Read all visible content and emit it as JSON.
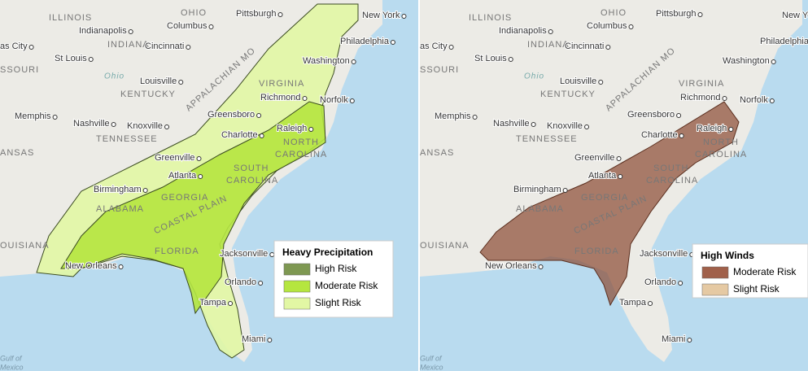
{
  "maps": [
    {
      "legend": {
        "title": "Heavy Precipitation",
        "items": [
          {
            "label": "High Risk",
            "color": "#7e9852"
          },
          {
            "label": "Moderate Risk",
            "color": "#b5e63f"
          },
          {
            "label": "Slight Risk",
            "color": "#e2f7a4"
          }
        ]
      },
      "labels": [
        "ILLINOIS",
        "OHIO",
        "Pittsburgh",
        "New York",
        "Indianapolis",
        "Columbus",
        "as City",
        "INDIANA",
        "Cincinnati",
        "Philadelphia",
        "St Louis",
        "Washington",
        "SSOURI",
        "Ohio",
        "Louisville",
        "VIRGINIA",
        "KENTUCKY",
        "Richmond",
        "Norfolk",
        "Greensboro",
        "Memphis",
        "Nashville",
        "Knoxville",
        "Charlotte",
        "Raleigh",
        "NORTH",
        "CAROLINA",
        "TENNESSEE",
        "ANSAS",
        "Greenville",
        "SOUTH",
        "CAROLINA",
        "Atlanta",
        "Birmingham",
        "GEORGIA",
        "ALABAMA",
        "OUISIANA",
        "Jacksonville",
        "FLORIDA",
        "New Orleans",
        "Orlando",
        "Tampa",
        "Miami",
        "Gulf of",
        "Mexico",
        "APPALACHIAN MO",
        "COASTAL PLAIN"
      ]
    },
    {
      "legend": {
        "title": "High Winds",
        "items": [
          {
            "label": "Moderate Risk",
            "color": "#a0604a"
          },
          {
            "label": "Slight Risk",
            "color": "#e5c9a3"
          }
        ]
      },
      "labels": [
        "ILLINOIS",
        "OHIO",
        "Pittsburgh",
        "New York",
        "Indianapolis",
        "Columbus",
        "as City",
        "INDIANA",
        "Cincinnati",
        "Philadelphia",
        "St Louis",
        "Washington",
        "SSOURI",
        "Ohio",
        "Louisville",
        "VIRGINIA",
        "KENTUCKY",
        "Richmond",
        "Norfolk",
        "Greensboro",
        "Memphis",
        "Nashville",
        "Knoxville",
        "Charlotte",
        "Raleigh",
        "NORTH",
        "CAROLINA",
        "TENNESSEE",
        "ANSAS",
        "Greenville",
        "SOUTH",
        "CAROLINA",
        "Atlanta",
        "Birmingham",
        "GEORGIA",
        "ALABAMA",
        "OUISIANA",
        "Jacksonville",
        "FLORIDA",
        "New Orleans",
        "Orlando",
        "Tampa",
        "Miami",
        "Gulf of",
        "Mexico",
        "APPALACHIAN MO",
        "COASTAL PLAIN"
      ]
    }
  ]
}
